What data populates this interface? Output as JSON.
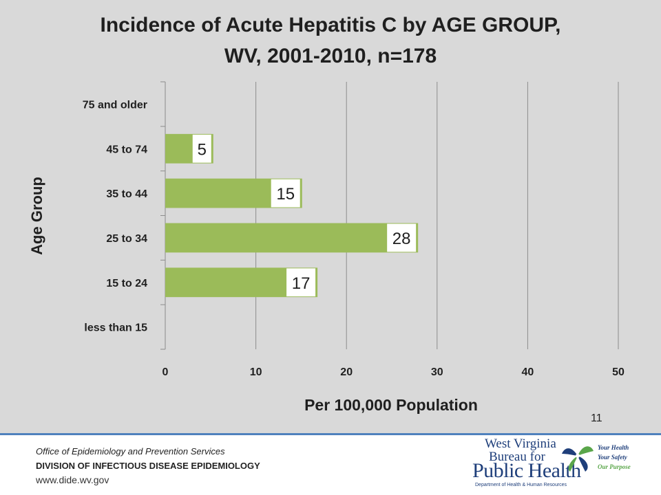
{
  "chart_data": {
    "type": "bar",
    "orientation": "horizontal",
    "title_line1": "Incidence of Acute Hepatitis C by AGE GROUP,",
    "title_line2": "WV, 2001-2010, n=178",
    "xlabel": "Per 100,000 Population",
    "ylabel": "Age Group",
    "categories": [
      "75 and older",
      "45 to 74",
      "35 to 44",
      "25 to 34",
      "15 to 24",
      "less than 15"
    ],
    "values": [
      null,
      5.3,
      15.1,
      27.9,
      16.8,
      null
    ],
    "data_labels": [
      "",
      "5",
      "15",
      "28",
      "17",
      ""
    ],
    "xlim": [
      0,
      50
    ],
    "xticks": [
      "0",
      "10",
      "20",
      "30",
      "40",
      "50"
    ],
    "bar_color": "#9bbb59",
    "grid": "vertical"
  },
  "page_number": "11",
  "footer": {
    "office": "Office of Epidemiology and Prevention Services",
    "division": "DIVISION OF INFECTIOUS DISEASE EPIDEMIOLOGY",
    "website": "www.dide.wv.gov"
  },
  "logo": {
    "line1": "West Virginia",
    "line2": "Bureau for",
    "line3": "Public Health",
    "department": "Department of Health & Human Resources",
    "tagline1": "Your Health",
    "tagline2": "Your Safety",
    "tagline3": "Our Purpose",
    "icon": "leaf-emblem-icon"
  }
}
